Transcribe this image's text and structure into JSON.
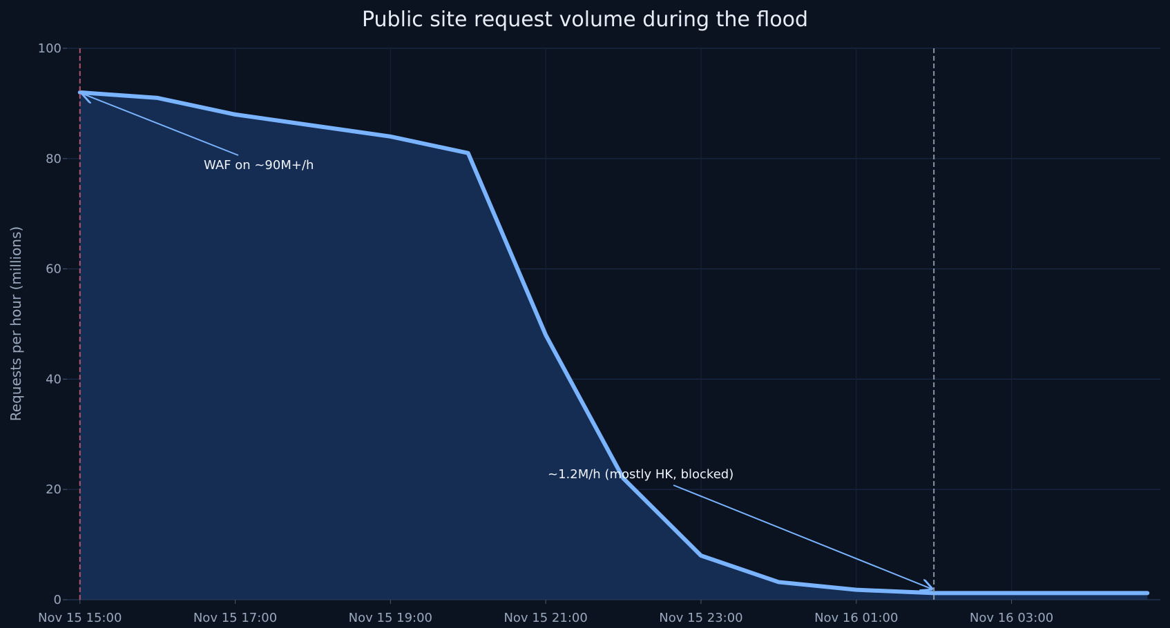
{
  "chart_data": {
    "type": "area",
    "title": "Public site request volume during the flood",
    "xlabel": "",
    "ylabel": "Requests per hour (millions)",
    "ylim": [
      0,
      100
    ],
    "yticks": [
      0,
      20,
      40,
      60,
      80,
      100
    ],
    "xlim": [
      "2024-11-15T14:50",
      "2024-11-16T04:55"
    ],
    "xtick_labels": [
      "Nov 15 15:00",
      "Nov 15 17:00",
      "Nov 15 19:00",
      "Nov 15 21:00",
      "Nov 15 23:00",
      "Nov 16 01:00",
      "Nov 16 03:00"
    ],
    "grid": true,
    "colors": {
      "line": "#7ab3ff",
      "fill": "#152d52",
      "start_marker": "#b5566a",
      "end_marker": "#8a95a8",
      "background": "#0b1320",
      "grid": "#1b2b45"
    },
    "series": [
      {
        "x": [
          "2024-11-15T15:00",
          "2024-11-15T16:00",
          "2024-11-15T17:00",
          "2024-11-15T18:00",
          "2024-11-15T19:00",
          "2024-11-15T20:00",
          "2024-11-15T21:00",
          "2024-11-15T22:00",
          "2024-11-15T23:00",
          "2024-11-16T00:00",
          "2024-11-16T01:00",
          "2024-11-16T02:00",
          "2024-11-16T03:00",
          "2024-11-16T04:00",
          "2024-11-16T04:45"
        ],
        "values": [
          92,
          91,
          88,
          86,
          84,
          81,
          48,
          22,
          8,
          3.2,
          1.8,
          1.2,
          1.2,
          1.2,
          1.2
        ]
      }
    ],
    "vertical_markers": [
      {
        "x": "2024-11-15T15:00",
        "style": "dashed",
        "color": "#b5566a"
      },
      {
        "x": "2024-11-16T02:00",
        "style": "dashed",
        "color": "#8a95a8"
      }
    ],
    "annotations": [
      {
        "text": "WAF on ~90M+/h",
        "point": [
          "2024-11-15T15:00",
          92
        ]
      },
      {
        "text": "~1.2M/h (mostly HK, blocked)",
        "point": [
          "2024-11-16T02:00",
          1.2
        ]
      }
    ]
  }
}
